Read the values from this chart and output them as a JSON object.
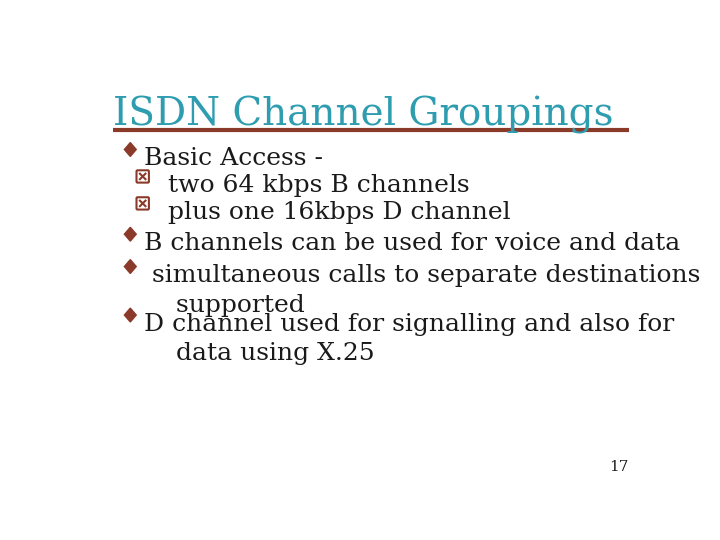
{
  "title": "ISDN Channel Groupings",
  "title_color": "#2E9DB0",
  "title_fontsize": 28,
  "separator_color": "#8B3A2A",
  "background_color": "#FFFFFF",
  "bullet_color": "#8B3A2A",
  "text_color": "#1A1A1A",
  "body_fontsize": 18,
  "page_number": "17",
  "bullets": [
    {
      "type": "diamond",
      "indent": 0,
      "text": "Basic Access -"
    },
    {
      "type": "xbox",
      "indent": 1,
      "text": "two 64 kbps B channels"
    },
    {
      "type": "xbox",
      "indent": 1,
      "text": "plus one 16kbps D channel"
    },
    {
      "type": "diamond",
      "indent": 0,
      "text": "B channels can be used for voice and data"
    },
    {
      "type": "diamond",
      "indent": 0,
      "text": " simultaneous calls to separate destinations\n    supported"
    },
    {
      "type": "diamond",
      "indent": 0,
      "text": "D channel used for signalling and also for\n    data using X.25"
    }
  ]
}
